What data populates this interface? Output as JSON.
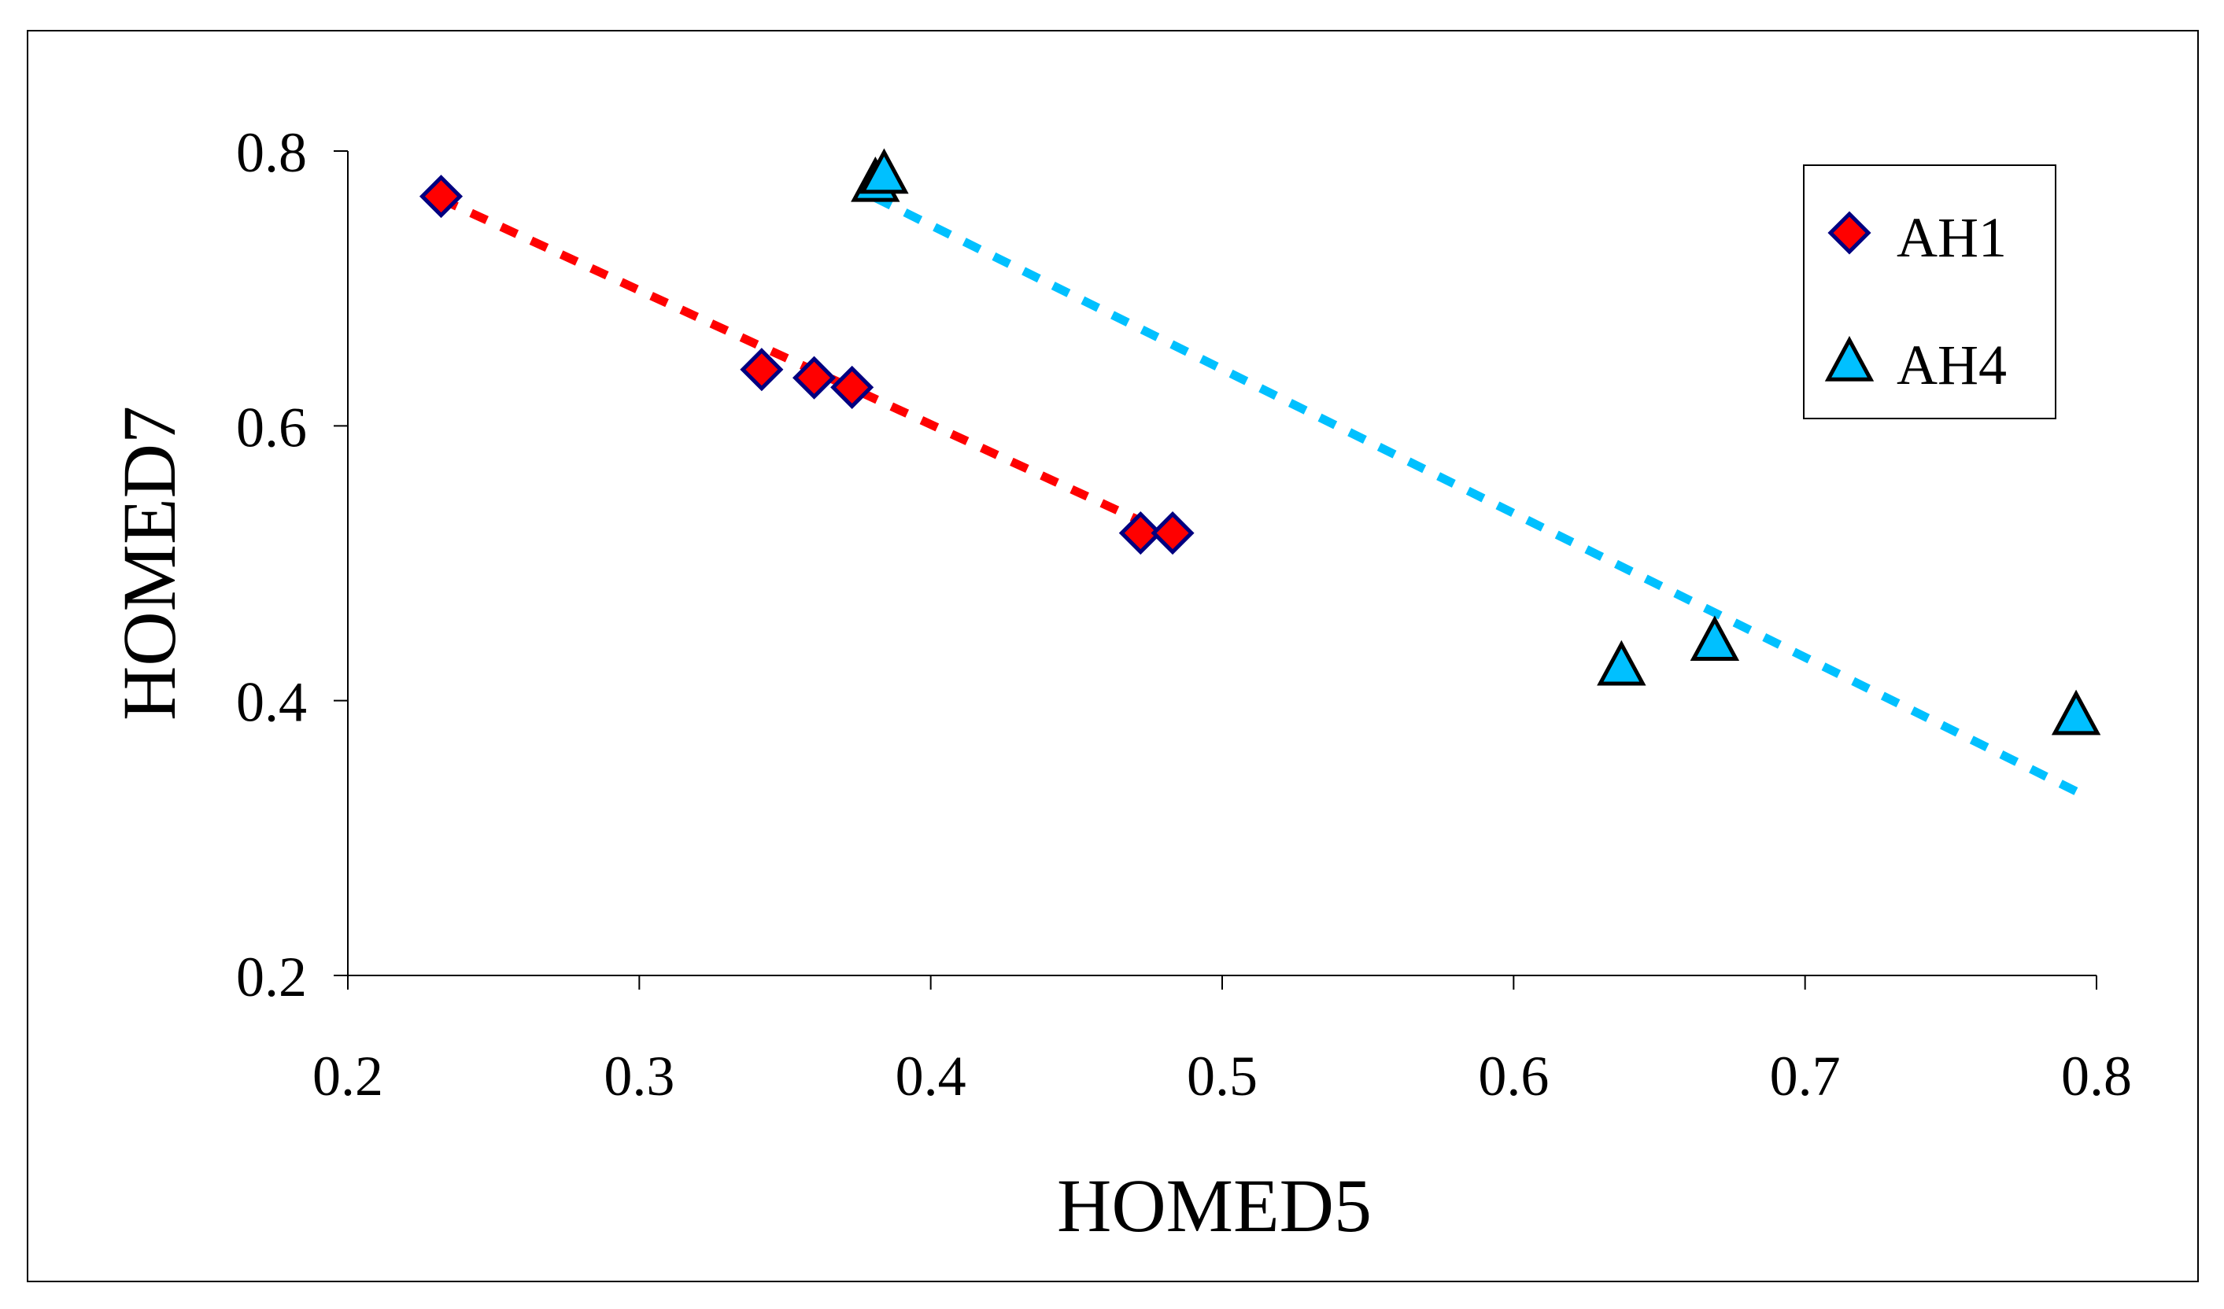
{
  "chart_data": {
    "type": "scatter",
    "title": "",
    "xlabel": "HOMED5",
    "ylabel": "HOMED7",
    "xlim": [
      0.2,
      0.8
    ],
    "ylim": [
      0.2,
      0.8
    ],
    "xticks": [
      0.2,
      0.3,
      0.4,
      0.5,
      0.6,
      0.7,
      0.8
    ],
    "yticks": [
      0.2,
      0.4,
      0.6,
      0.8
    ],
    "xtick_labels": [
      "0.2",
      "0.3",
      "0.4",
      "0.5",
      "0.6",
      "0.7",
      "0.8"
    ],
    "ytick_labels": [
      "0.2",
      "0.4",
      "0.6",
      "0.8"
    ],
    "grid": false,
    "legend_position": "top-right",
    "series": [
      {
        "name": "AH1",
        "marker": "diamond",
        "color": "#ff0000",
        "edge_color": "#000080",
        "x": [
          0.232,
          0.342,
          0.36,
          0.373,
          0.472,
          0.483
        ],
        "y": [
          0.767,
          0.641,
          0.635,
          0.628,
          0.522,
          0.522
        ],
        "trendline": {
          "style": "dotted",
          "color": "#ff0000",
          "points": [
            [
              0.232,
              0.765
            ],
            [
              0.483,
              0.52
            ]
          ]
        }
      },
      {
        "name": "AH4",
        "marker": "triangle",
        "color": "#00c0ff",
        "edge_color": "#000000",
        "x": [
          0.381,
          0.384,
          0.637,
          0.669,
          0.793
        ],
        "y": [
          0.776,
          0.782,
          0.424,
          0.442,
          0.388
        ],
        "trendline": {
          "style": "dotted",
          "color": "#00c0ff",
          "points": [
            [
              0.381,
              0.766
            ],
            [
              0.793,
              0.334
            ]
          ]
        }
      }
    ]
  }
}
